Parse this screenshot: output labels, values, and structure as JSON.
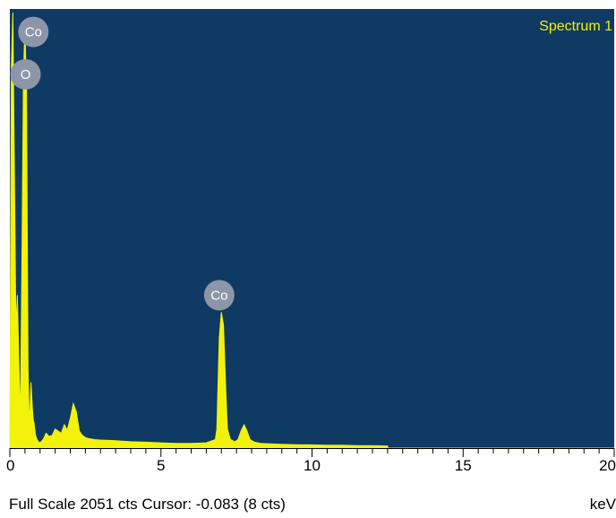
{
  "chart_data": {
    "type": "line",
    "title": "Spectrum 1",
    "xlabel": "keV",
    "xlim": [
      0,
      20
    ],
    "ylim": [
      0,
      2051
    ],
    "x_ticks": [
      0,
      5,
      10,
      15,
      20
    ],
    "x_tick_labels": [
      "0",
      "5",
      "10",
      "15",
      "20"
    ],
    "grid": false,
    "series": [
      {
        "x": [
          0.0,
          0.05,
          0.1,
          0.15,
          0.2,
          0.25,
          0.3,
          0.35,
          0.4,
          0.45,
          0.5,
          0.52,
          0.55,
          0.6,
          0.65,
          0.7,
          0.75,
          0.78,
          0.8,
          0.85,
          0.9,
          0.95,
          1.0,
          1.1,
          1.2,
          1.3,
          1.4,
          1.5,
          1.6,
          1.7,
          1.8,
          1.9,
          2.0,
          2.1,
          2.2,
          2.3,
          2.4,
          2.5,
          2.6,
          2.8,
          3.0,
          3.5,
          4.0,
          4.5,
          5.0,
          5.5,
          6.0,
          6.5,
          6.8,
          6.85,
          6.93,
          7.0,
          7.07,
          7.15,
          7.2,
          7.3,
          7.45,
          7.55,
          7.65,
          7.75,
          7.85,
          7.95,
          8.1,
          8.3,
          8.6,
          9.0,
          9.5,
          10.0,
          10.5,
          11.0,
          11.5,
          12.0,
          12.5,
          12.51,
          13.0,
          14.0,
          15.0,
          16.0,
          17.0,
          18.0,
          19.0,
          20.0
        ],
        "y": [
          0,
          1800,
          2051,
          1300,
          560,
          720,
          400,
          130,
          900,
          1750,
          2000,
          1850,
          1700,
          380,
          100,
          310,
          180,
          130,
          120,
          60,
          40,
          30,
          25,
          40,
          70,
          55,
          60,
          90,
          80,
          70,
          110,
          85,
          140,
          210,
          170,
          80,
          60,
          50,
          45,
          40,
          38,
          35,
          30,
          28,
          25,
          22,
          22,
          25,
          40,
          90,
          520,
          640,
          580,
          260,
          90,
          40,
          30,
          40,
          80,
          110,
          80,
          40,
          28,
          22,
          20,
          18,
          16,
          15,
          14,
          14,
          12,
          12,
          10,
          0,
          0,
          0,
          0,
          0,
          0,
          0,
          0,
          0
        ]
      }
    ],
    "annotations": [
      {
        "label": "Co",
        "x": 0.78,
        "y": 1960
      },
      {
        "label": "O",
        "x": 0.52,
        "y": 1760
      },
      {
        "label": "Co",
        "x": 6.93,
        "y": 720
      }
    ]
  },
  "status": {
    "text": "Full Scale 2051 cts Cursor: -0.083  (8 cts)",
    "unit": "keV"
  },
  "colors": {
    "background": "#0f3a63",
    "trace": "#f2f20a",
    "title": "#f2f20a",
    "label_circle": "#8c96a8"
  }
}
